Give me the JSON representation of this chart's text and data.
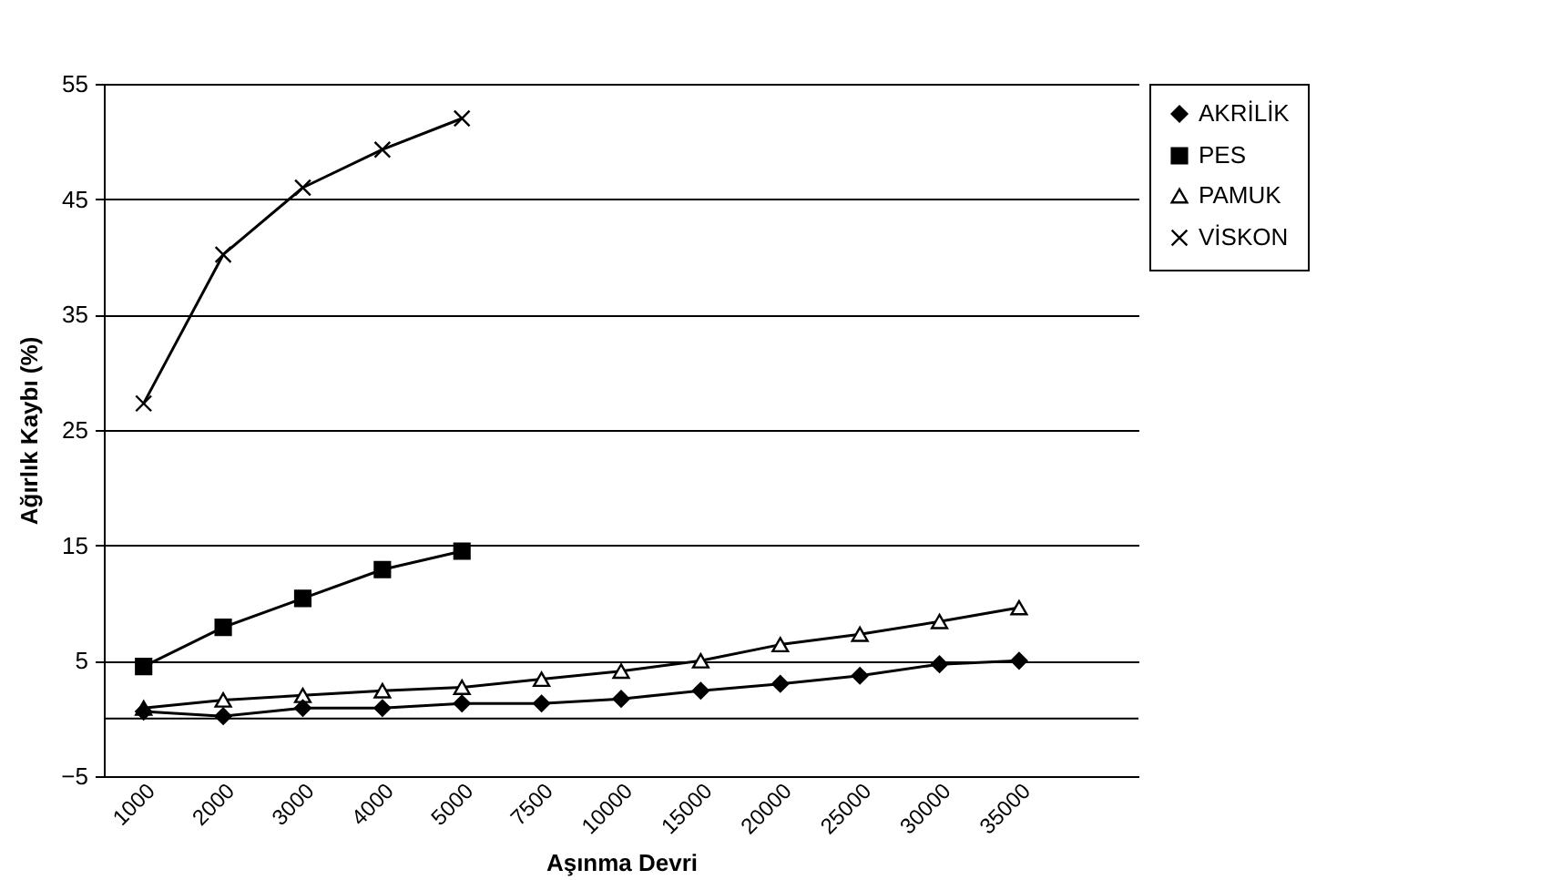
{
  "chart_data": {
    "type": "line",
    "xlabel": "Aşınma Devri",
    "ylabel": "Ağırlık Kaybı (%)",
    "categories": [
      "1000",
      "2000",
      "3000",
      "4000",
      "5000",
      "7500",
      "10000",
      "15000",
      "20000",
      "25000",
      "30000",
      "35000",
      null
    ],
    "series": [
      {
        "name": "AKRİLİK",
        "color": "#000000",
        "marker": "diamond",
        "values": [
          0.6,
          0.2,
          0.9,
          0.9,
          1.3,
          1.3,
          1.7,
          2.4,
          3.0,
          3.7,
          4.7,
          5.0,
          null
        ]
      },
      {
        "name": "PES",
        "color": "#000000",
        "marker": "square",
        "values": [
          4.5,
          7.9,
          10.4,
          12.9,
          14.5,
          null,
          null,
          null,
          null,
          null,
          null,
          null,
          null
        ]
      },
      {
        "name": "PAMUK",
        "color": "#000000",
        "marker": "triangle",
        "values": [
          0.9,
          1.6,
          2.0,
          2.4,
          2.7,
          3.4,
          4.1,
          5.0,
          6.4,
          7.3,
          8.4,
          9.6,
          null
        ]
      },
      {
        "name": "VİSKON",
        "color": "#000000",
        "marker": "cross",
        "values": [
          27.3,
          40.2,
          46.0,
          49.3,
          52.0,
          null,
          null,
          null,
          null,
          null,
          null,
          null,
          null
        ]
      }
    ],
    "ylim": [
      -5,
      55
    ],
    "yticks": [
      -5,
      5,
      15,
      25,
      35,
      45,
      55
    ],
    "grid": "y",
    "legend": "right",
    "ref_lines": [
      {
        "axis": "y",
        "value": 0
      }
    ]
  }
}
